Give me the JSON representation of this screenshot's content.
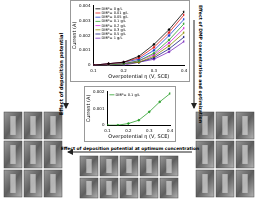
{
  "chart_data": [
    {
      "type": "line",
      "x_label": "Overpotential η (V, SCE)",
      "y_label": "Current (A)",
      "x": [
        0.1,
        0.15,
        0.2,
        0.25,
        0.3,
        0.35,
        0.4
      ],
      "series": [
        {
          "name": "DMP= 0 g/L",
          "color": "#000000",
          "values": [
            0,
            0.0001,
            0.0002,
            0.0006,
            0.0014,
            0.0024,
            0.0036
          ]
        },
        {
          "name": "DMP= 0.01 g/L",
          "color": "#e41a1c",
          "values": [
            0,
            0.0001,
            0.0002,
            0.0005,
            0.0012,
            0.0022,
            0.0034
          ]
        },
        {
          "name": "DMP= 0.05 g/L",
          "color": "#1f3fd1",
          "values": [
            0,
            0.0001,
            0.0002,
            0.0004,
            0.001,
            0.002,
            0.0031
          ]
        },
        {
          "name": "DMP= 0.1 g/L",
          "color": "#2ca02c",
          "values": [
            0,
            0,
            0.0001,
            0.0003,
            0.0008,
            0.0017,
            0.0028
          ]
        },
        {
          "name": "DMP= 0.2 g/L",
          "color": "#d62ad6",
          "values": [
            0,
            0,
            0.0001,
            0.0003,
            0.0007,
            0.0015,
            0.0025
          ]
        },
        {
          "name": "DMP= 0.3 g/L",
          "color": "#8c8c00",
          "values": [
            0,
            0,
            0.0001,
            0.0002,
            0.0006,
            0.0013,
            0.0022
          ]
        },
        {
          "name": "DMP= 0.5 g/L",
          "color": "#1a1a80",
          "values": [
            0,
            0,
            0.0001,
            0.0002,
            0.0005,
            0.0011,
            0.0019
          ]
        },
        {
          "name": "DMP= 1 g/L",
          "color": "#7b2fbe",
          "values": [
            0,
            0,
            0,
            0.0002,
            0.0004,
            0.0009,
            0.0016
          ]
        }
      ],
      "xlim": [
        0.1,
        0.4
      ],
      "xticks": [
        0.1,
        0.2,
        0.3,
        0.4
      ],
      "ylim": [
        0,
        0.004
      ],
      "yticks": [
        0,
        0.001,
        0.002,
        0.003,
        0.004
      ],
      "legend": "upper left",
      "grid": false,
      "marker": "circle"
    },
    {
      "type": "line",
      "x_label": "Overpotential η (V, SCE)",
      "y_label": "Current (A)",
      "x": [
        0.1,
        0.15,
        0.2,
        0.25,
        0.3,
        0.35,
        0.4
      ],
      "series": [
        {
          "name": "DMP= 0.1 g/L",
          "color": "#2ca02c",
          "values": [
            0,
            0,
            0.0001,
            0.0003,
            0.0008,
            0.0014,
            0.0019
          ]
        }
      ],
      "xlim": [
        0.1,
        0.4
      ],
      "xticks": [
        0.1,
        0.2,
        0.3,
        0.4
      ],
      "ylim": [
        0,
        0.002
      ],
      "yticks": [
        0,
        0.001,
        0.002
      ],
      "legend": "upper left",
      "grid": false,
      "marker": "circle"
    }
  ],
  "arrows": [
    {
      "label": "Effect of deposition potential"
    },
    {
      "label": "Effect of DMP concentration and optimization"
    },
    {
      "label": "Effect of deposition potential at optimum concentration"
    }
  ]
}
